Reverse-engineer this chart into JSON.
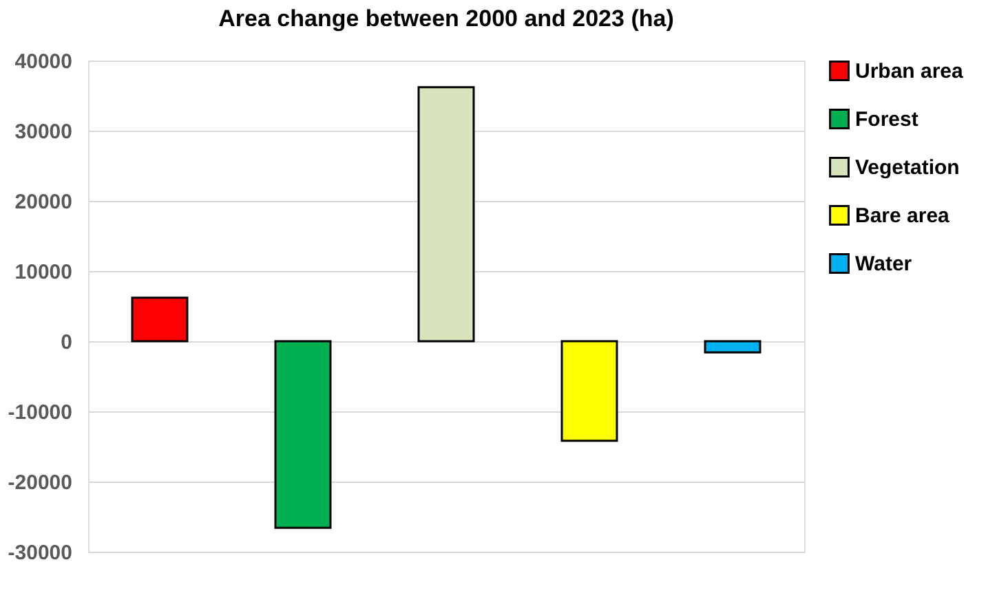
{
  "chart_data": {
    "type": "bar",
    "title": "Area change between 2000 and 2023 (ha)",
    "categories": [
      null,
      null,
      null,
      null,
      null
    ],
    "series": [
      {
        "name": "Urban area",
        "color": "#ff0000",
        "values": [
          6200,
          null,
          null,
          null,
          null
        ]
      },
      {
        "name": "Forest",
        "color": "#00b050",
        "values": [
          null,
          -26600,
          null,
          null,
          null
        ]
      },
      {
        "name": "Vegetation",
        "color": "#d8e4bc",
        "values": [
          null,
          null,
          36200,
          null,
          null
        ]
      },
      {
        "name": "Bare area",
        "color": "#ffff00",
        "values": [
          null,
          null,
          null,
          -14200,
          null
        ]
      },
      {
        "name": "Water",
        "color": "#00b0f0",
        "values": [
          null,
          null,
          null,
          null,
          -1600
        ]
      }
    ],
    "ylim": [
      -30000,
      40000
    ],
    "yticks": [
      -30000,
      -20000,
      -10000,
      0,
      10000,
      20000,
      30000,
      40000
    ],
    "grid": "y",
    "legend": "right",
    "tick_labels": "y"
  }
}
